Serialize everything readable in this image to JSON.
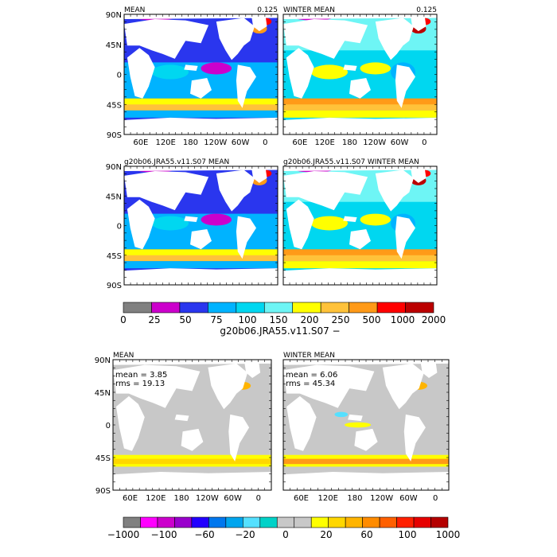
{
  "figure": {
    "colorbar_top": {
      "bounds": [
        "0",
        "25",
        "50",
        "75",
        "100",
        "150",
        "200",
        "250",
        "500",
        "1000",
        "2000"
      ],
      "colors": [
        "#808080",
        "#cc00cc",
        "#2a36ee",
        "#00b3ff",
        "#00d7f0",
        "#6ef5f5",
        "#ffff00",
        "#ffc23a",
        "#ff9a18",
        "#ff0000",
        "#bb0000"
      ],
      "title": "g20b06.JRA55.v11.S07 −"
    },
    "colorbar_bottom": {
      "bounds": [
        "−1000",
        "−100",
        "−60",
        "−20",
        "0",
        "20",
        "60",
        "100",
        "1000"
      ],
      "colors": [
        "#808080",
        "#ff00ff",
        "#cc00cc",
        "#9900cc",
        "#2200ff",
        "#0077ee",
        "#00a5ee",
        "#55e0ff",
        "#00d2c8",
        "#c8c8c8",
        "#c8c8c8",
        "#ffff00",
        "#ffd700",
        "#ffb400",
        "#ff8c00",
        "#ff6000",
        "#ff2000",
        "#e60000",
        "#b40000"
      ]
    }
  },
  "chart_data": [
    {
      "type": "heatmap",
      "title_left": "MEAN",
      "title_right": "0.125",
      "x_ticks": [
        "60E",
        "120E",
        "180",
        "120W",
        "60W",
        "0"
      ],
      "y_ticks": [
        "90N",
        "45N",
        "0",
        "45S",
        "90S"
      ],
      "fields": {
        "low": "#2a36ee",
        "mid": "#00b3ff",
        "high": "#ffff00",
        "south": "#ffc23a"
      }
    },
    {
      "type": "heatmap",
      "title_left": "WINTER MEAN",
      "title_right": "0.125",
      "x_ticks": [
        "60E",
        "120E",
        "180",
        "120W",
        "60W",
        "0"
      ],
      "y_ticks": [
        "90N",
        "45N",
        "0",
        "45S",
        "90S"
      ]
    },
    {
      "type": "heatmap",
      "title_left": "g20b06.JRA55.v11.S07 MEAN",
      "title_right": "",
      "y_ticks": [
        "90N",
        "45N",
        "0",
        "45S",
        "90S"
      ]
    },
    {
      "type": "heatmap",
      "title_left": "g20b06.JRA55.v11.S07 WINTER MEAN",
      "title_right": ""
    },
    {
      "type": "heatmap",
      "title_left": "MEAN",
      "stats": [
        "mean = 3.85",
        "rms = 19.13"
      ],
      "x_ticks": [
        "60E",
        "120E",
        "180",
        "120W",
        "60W",
        "0"
      ],
      "y_ticks": [
        "90N",
        "45N",
        "0",
        "45S",
        "90S"
      ]
    },
    {
      "type": "heatmap",
      "title_left": "WINTER MEAN",
      "stats": [
        "mean = 6.06",
        "rms = 45.34"
      ],
      "x_ticks": [
        "60E",
        "120E",
        "180",
        "120W",
        "60W",
        "0"
      ]
    }
  ]
}
